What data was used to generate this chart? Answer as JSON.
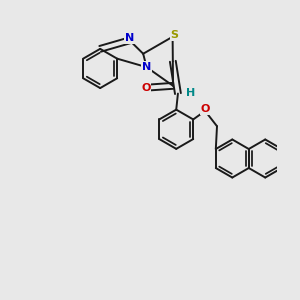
{
  "background_color": "#e8e8e8",
  "bond_color": "#1a1a1a",
  "bond_width": 1.4,
  "S_color": "#999900",
  "N_color": "#0000cc",
  "O_color": "#cc0000",
  "H_color": "#008888",
  "figsize": [
    3.0,
    3.0
  ],
  "dpi": 100,
  "xlim": [
    -2.8,
    2.8
  ],
  "ylim": [
    -3.5,
    3.0
  ]
}
